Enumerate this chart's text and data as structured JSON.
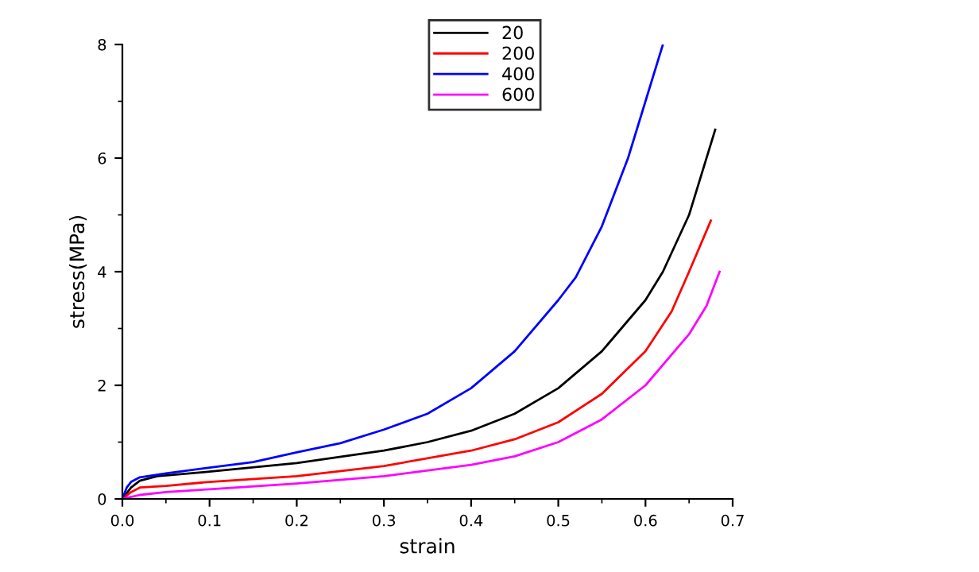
{
  "chart_data": {
    "type": "line",
    "xlabel": "strain",
    "ylabel": "stress(MPa)",
    "xlim": [
      0,
      0.7
    ],
    "ylim": [
      0,
      8
    ],
    "xticks": [
      {
        "value": 0,
        "label": "0.0"
      },
      {
        "value": 0.1,
        "label": "0.1"
      },
      {
        "value": 0.2,
        "label": "0.2"
      },
      {
        "value": 0.3,
        "label": "0.3"
      },
      {
        "value": 0.4,
        "label": "0.4"
      },
      {
        "value": 0.5,
        "label": "0.5"
      },
      {
        "value": 0.6,
        "label": "0.6"
      },
      {
        "value": 0.7,
        "label": "0.7"
      }
    ],
    "yticks": [
      0,
      2,
      4,
      6,
      8
    ],
    "grid": false,
    "legend": "top",
    "marker": "none",
    "line_style": "solid",
    "series": [
      {
        "name": "20",
        "color": "#000000",
        "x": [
          0,
          0.01,
          0.02,
          0.04,
          0.1,
          0.2,
          0.3,
          0.35,
          0.4,
          0.45,
          0.5,
          0.55,
          0.6,
          0.62,
          0.65,
          0.68
        ],
        "values": [
          0,
          0.2,
          0.32,
          0.4,
          0.48,
          0.63,
          0.85,
          1.0,
          1.2,
          1.5,
          1.95,
          2.6,
          3.5,
          4.0,
          5.0,
          6.5
        ]
      },
      {
        "name": "200",
        "color": "#ff0000",
        "x": [
          0,
          0.01,
          0.02,
          0.05,
          0.1,
          0.2,
          0.3,
          0.4,
          0.45,
          0.5,
          0.55,
          0.6,
          0.63,
          0.65,
          0.675
        ],
        "values": [
          0,
          0.12,
          0.2,
          0.23,
          0.3,
          0.4,
          0.58,
          0.85,
          1.05,
          1.35,
          1.85,
          2.6,
          3.3,
          4.0,
          4.9
        ]
      },
      {
        "name": "400",
        "color": "#0000ff",
        "x": [
          0,
          0.005,
          0.01,
          0.02,
          0.05,
          0.1,
          0.15,
          0.2,
          0.25,
          0.3,
          0.35,
          0.4,
          0.45,
          0.5,
          0.52,
          0.55,
          0.58,
          0.6,
          0.62
        ],
        "values": [
          0,
          0.2,
          0.3,
          0.38,
          0.45,
          0.55,
          0.65,
          0.82,
          0.98,
          1.22,
          1.5,
          1.95,
          2.6,
          3.5,
          3.9,
          4.8,
          6.0,
          7.0,
          8.0
        ]
      },
      {
        "name": "600",
        "color": "#ff00ff",
        "x": [
          0,
          0.02,
          0.05,
          0.1,
          0.2,
          0.3,
          0.4,
          0.45,
          0.5,
          0.55,
          0.6,
          0.65,
          0.67,
          0.685
        ],
        "values": [
          0,
          0.07,
          0.12,
          0.17,
          0.27,
          0.4,
          0.6,
          0.75,
          1.0,
          1.4,
          2.0,
          2.9,
          3.4,
          4.0
        ]
      }
    ]
  }
}
